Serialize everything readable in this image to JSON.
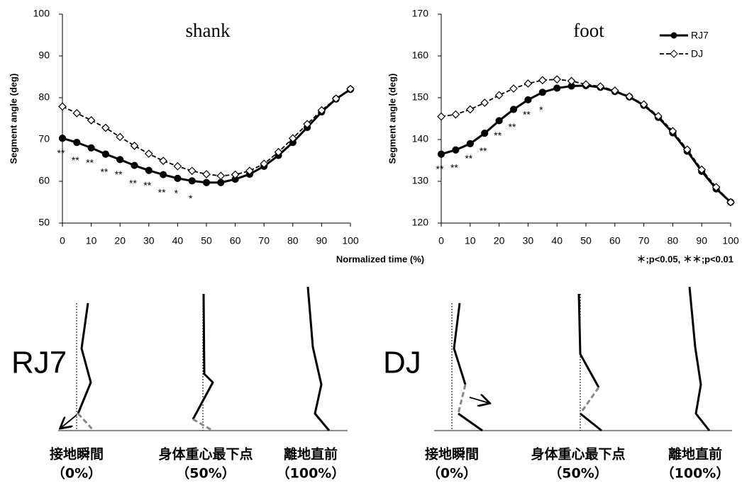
{
  "chart_data": [
    {
      "type": "line",
      "title": "shank",
      "y_label": "Segment angle (deg)",
      "x": [
        0,
        5,
        10,
        15,
        20,
        25,
        30,
        35,
        40,
        45,
        50,
        55,
        60,
        65,
        70,
        75,
        80,
        85,
        90,
        95,
        100
      ],
      "series": [
        {
          "color": "#000000",
          "marker": "circle",
          "dashed": false,
          "values": [
            70.3,
            69.3,
            68,
            66.5,
            65.2,
            63.8,
            62.6,
            61.6,
            60.7,
            60.1,
            59.7,
            59.7,
            60.5,
            61.7,
            63.6,
            66.2,
            69.3,
            72.9,
            76.6,
            79.7,
            82
          ]
        },
        {
          "color": "#000000",
          "marker": "diamond",
          "dashed": true,
          "values": [
            77.9,
            76.3,
            74.6,
            72.8,
            70.6,
            68.5,
            66.6,
            64.9,
            63.6,
            62.5,
            61.7,
            61.3,
            61.6,
            62.5,
            64.2,
            67,
            70.3,
            73.7,
            77,
            79.8,
            82.1
          ]
        }
      ],
      "significance": [
        "**",
        "**",
        "**",
        "**",
        "**",
        "**",
        "**",
        "**",
        "*",
        "*",
        null,
        null,
        null,
        null,
        null,
        null,
        null,
        null,
        null,
        null,
        null
      ],
      "xlim": [
        0,
        100
      ],
      "xticks": [
        0,
        10,
        20,
        30,
        40,
        50,
        60,
        70,
        80,
        90,
        100
      ],
      "ylim": [
        50,
        100
      ],
      "yticks": [
        50,
        60,
        70,
        80,
        90,
        100
      ]
    },
    {
      "type": "line",
      "title": "foot",
      "y_label": "Segment angle (deg)",
      "x": [
        0,
        5,
        10,
        15,
        20,
        25,
        30,
        35,
        40,
        45,
        50,
        55,
        60,
        65,
        70,
        75,
        80,
        85,
        90,
        95,
        100
      ],
      "series": [
        {
          "name": "RJ7",
          "color": "#000000",
          "marker": "circle",
          "dashed": false,
          "values": [
            136.5,
            137.5,
            139,
            141.5,
            144.5,
            147.2,
            149.5,
            151.3,
            152.3,
            152.8,
            152.9,
            152.5,
            151.5,
            150.2,
            148.2,
            145.3,
            141.6,
            137.2,
            132.4,
            128.2,
            125
          ]
        },
        {
          "name": "DJ",
          "color": "#000000",
          "marker": "diamond",
          "dashed": true,
          "values": [
            145.5,
            146,
            147.2,
            148.8,
            150.6,
            152.2,
            153.4,
            154.2,
            154.4,
            154,
            153.2,
            152.7,
            151.7,
            150.3,
            148.4,
            145.6,
            142,
            137.6,
            132.8,
            128.6,
            125
          ]
        }
      ],
      "significance": [
        "**",
        "**",
        "**",
        "**",
        "**",
        "**",
        "**",
        "*",
        null,
        null,
        null,
        null,
        null,
        null,
        null,
        null,
        null,
        null,
        null,
        null,
        null
      ],
      "legend": "upper right",
      "xlim": [
        0,
        100
      ],
      "xticks": [
        0,
        10,
        20,
        30,
        40,
        50,
        60,
        70,
        80,
        90,
        100
      ],
      "ylim": [
        120,
        170
      ],
      "yticks": [
        120,
        130,
        140,
        150,
        160,
        170
      ]
    }
  ],
  "figure": {
    "x_label": "Normalized time (%)",
    "significance_note": "＊;p<0.05, ＊＊;p<0.01"
  },
  "panels": [
    {
      "label": "RJ7",
      "captions": [
        [
          "接地瞬間",
          "（0%）"
        ],
        [
          "身体重心最下点",
          "（50%）"
        ],
        [
          "離地直前",
          "（100%）"
        ]
      ]
    },
    {
      "label": "DJ",
      "captions": [
        [
          "接地瞬間",
          "（0%）"
        ],
        [
          "身体重心最下点",
          "（50%）"
        ],
        [
          "離地直前",
          "（100%）"
        ]
      ]
    }
  ]
}
